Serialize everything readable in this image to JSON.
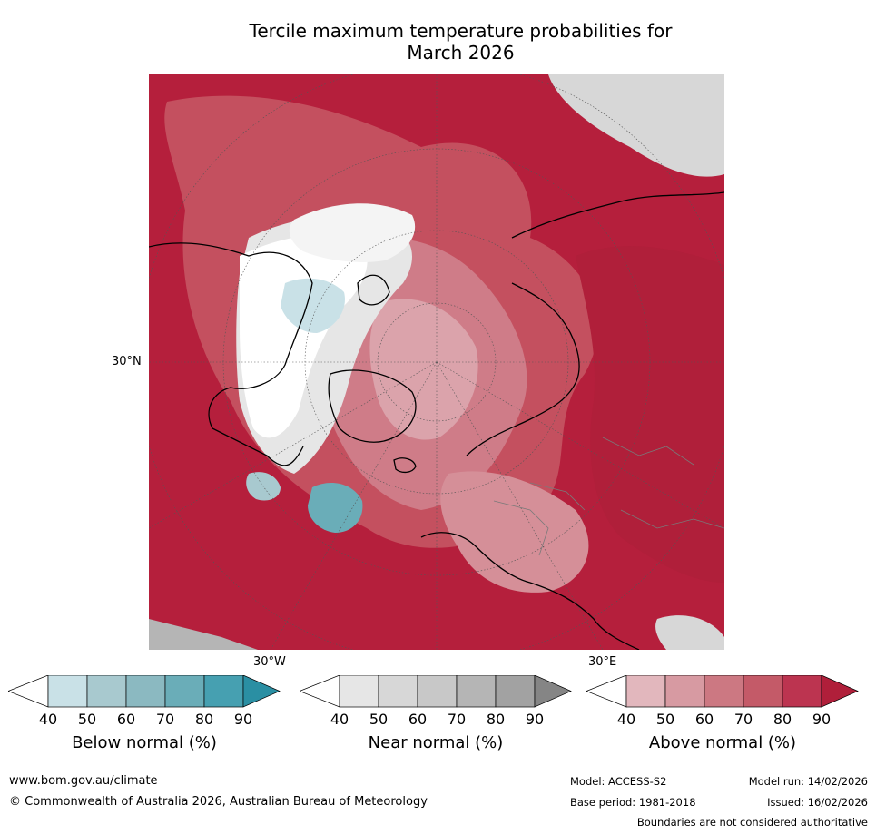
{
  "title_line1": "Tercile maximum temperature probabilities for",
  "title_line2": "March 2026",
  "axis_labels": {
    "lat_30n": "30°N",
    "lon_30w": "30°W",
    "lon_30e": "30°E"
  },
  "colorbars": [
    {
      "label": "Below normal (%)",
      "ticks": [
        "40",
        "50",
        "60",
        "70",
        "80",
        "90"
      ],
      "colors": [
        "#ffffff",
        "#c9e1e7",
        "#a8c9cf",
        "#8bb9c1",
        "#6aadb8",
        "#46a0b1",
        "#2a8fa3"
      ]
    },
    {
      "label": "Near normal (%)",
      "ticks": [
        "40",
        "50",
        "60",
        "70",
        "80",
        "90"
      ],
      "colors": [
        "#ffffff",
        "#e6e6e6",
        "#d7d7d7",
        "#c8c8c8",
        "#b5b5b5",
        "#a2a2a2",
        "#858585"
      ]
    },
    {
      "label": "Above normal (%)",
      "ticks": [
        "40",
        "50",
        "60",
        "70",
        "80",
        "90"
      ],
      "colors": [
        "#ffffff",
        "#e2b7bd",
        "#d79aa2",
        "#cc7882",
        "#c45a68",
        "#bc3450",
        "#b01f3a"
      ]
    }
  ],
  "footer": {
    "website": "www.bom.gov.au/climate",
    "copyright": "© Commonwealth of Australia 2026, Australian Bureau of Meteorology",
    "model": "Model: ACCESS-S2",
    "model_run": "Model run: 14/02/2026",
    "base_period": "Base period: 1981-2018",
    "issued": "Issued: 16/02/2026",
    "disclaimer": "Boundaries are not considered authoritative"
  }
}
